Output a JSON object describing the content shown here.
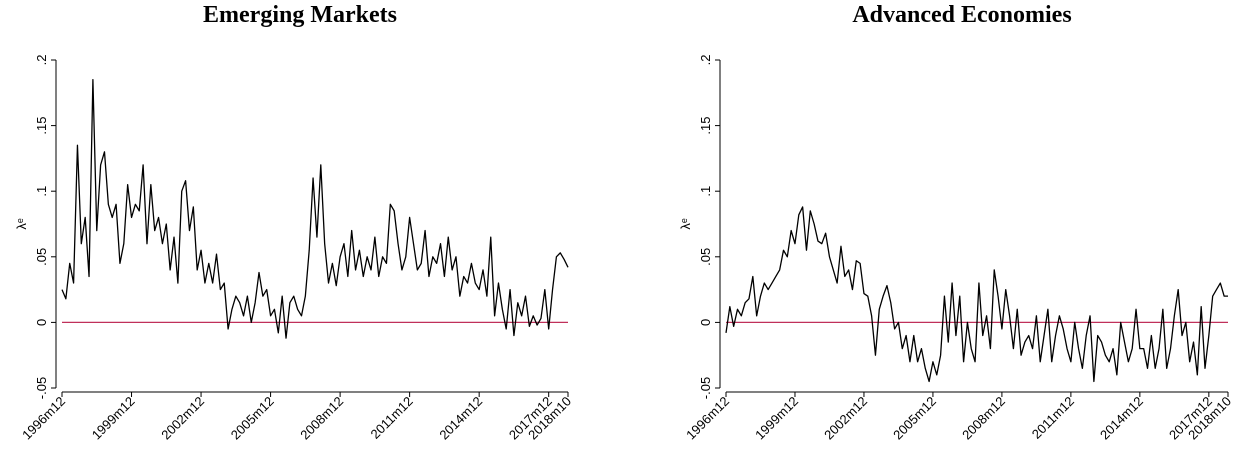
{
  "chart_data": [
    {
      "type": "line",
      "title": "Emerging Markets",
      "y_label": "λᵉ",
      "reference_line": {
        "value": 0,
        "color": "#c0305a"
      },
      "xlim": [
        443,
        705
      ],
      "xticks": [
        {
          "value": 443,
          "label": "1996m12"
        },
        {
          "value": 479,
          "label": "1999m12"
        },
        {
          "value": 515,
          "label": "2002m12"
        },
        {
          "value": 551,
          "label": "2005m12"
        },
        {
          "value": 587,
          "label": "2008m12"
        },
        {
          "value": 623,
          "label": "2011m12"
        },
        {
          "value": 659,
          "label": "2014m12"
        },
        {
          "value": 695,
          "label": "2017m12"
        },
        {
          "value": 705,
          "label": "2018m10"
        }
      ],
      "ylim": [
        -0.05,
        0.2
      ],
      "yticks": [
        {
          "value": -0.05,
          "label": "-.05"
        },
        0,
        {
          "value": 0.05,
          "label": ".05"
        },
        {
          "value": 0.1,
          "label": ".1"
        },
        {
          "value": 0.15,
          "label": ".15"
        },
        {
          "value": 0.2,
          "label": ".2"
        }
      ],
      "x": [
        443,
        445,
        447,
        449,
        451,
        453,
        455,
        457,
        459,
        461,
        463,
        465,
        467,
        469,
        471,
        473,
        475,
        477,
        479,
        481,
        483,
        485,
        487,
        489,
        491,
        493,
        495,
        497,
        499,
        501,
        503,
        505,
        507,
        509,
        511,
        513,
        515,
        517,
        519,
        521,
        523,
        525,
        527,
        529,
        531,
        533,
        535,
        537,
        539,
        541,
        543,
        545,
        547,
        549,
        551,
        553,
        555,
        557,
        559,
        561,
        563,
        565,
        567,
        569,
        571,
        573,
        575,
        577,
        579,
        581,
        583,
        585,
        587,
        589,
        591,
        593,
        595,
        597,
        599,
        601,
        603,
        605,
        607,
        609,
        611,
        613,
        615,
        617,
        619,
        621,
        623,
        625,
        627,
        629,
        631,
        633,
        635,
        637,
        639,
        641,
        643,
        645,
        647,
        649,
        651,
        653,
        655,
        657,
        659,
        661,
        663,
        665,
        667,
        669,
        671,
        673,
        675,
        677,
        679,
        681,
        683,
        685,
        687,
        689,
        691,
        693,
        695,
        697,
        699,
        701,
        703,
        705
      ],
      "series": [
        {
          "color": "#000000",
          "values": [
            0.025,
            0.018,
            0.045,
            0.03,
            0.135,
            0.06,
            0.08,
            0.035,
            0.185,
            0.07,
            0.12,
            0.13,
            0.09,
            0.08,
            0.09,
            0.045,
            0.06,
            0.105,
            0.08,
            0.09,
            0.085,
            0.12,
            0.06,
            0.105,
            0.07,
            0.08,
            0.06,
            0.075,
            0.04,
            0.065,
            0.03,
            0.1,
            0.108,
            0.07,
            0.088,
            0.04,
            0.055,
            0.03,
            0.045,
            0.03,
            0.052,
            0.025,
            0.03,
            -0.005,
            0.01,
            0.02,
            0.015,
            0.005,
            0.02,
            0.0,
            0.015,
            0.038,
            0.02,
            0.025,
            0.005,
            0.01,
            -0.008,
            0.02,
            -0.012,
            0.015,
            0.02,
            0.01,
            0.005,
            0.02,
            0.055,
            0.11,
            0.065,
            0.12,
            0.06,
            0.03,
            0.045,
            0.028,
            0.05,
            0.06,
            0.035,
            0.07,
            0.04,
            0.055,
            0.035,
            0.05,
            0.04,
            0.065,
            0.035,
            0.05,
            0.045,
            0.09,
            0.085,
            0.06,
            0.04,
            0.05,
            0.08,
            0.06,
            0.04,
            0.045,
            0.07,
            0.035,
            0.05,
            0.045,
            0.06,
            0.035,
            0.065,
            0.04,
            0.05,
            0.02,
            0.035,
            0.03,
            0.045,
            0.03,
            0.025,
            0.04,
            0.02,
            0.065,
            0.005,
            0.03,
            0.01,
            -0.005,
            0.025,
            -0.01,
            0.015,
            0.005,
            0.02,
            -0.003,
            0.005,
            -0.002,
            0.003,
            0.025,
            -0.005,
            0.025,
            0.05,
            0.053,
            0.048,
            0.042
          ]
        }
      ]
    },
    {
      "type": "line",
      "title": "Advanced Economies",
      "y_label": "λᵉ",
      "reference_line": {
        "value": 0,
        "color": "#c0305a"
      },
      "xlim": [
        443,
        705
      ],
      "xticks": [
        {
          "value": 443,
          "label": "1996m12"
        },
        {
          "value": 479,
          "label": "1999m12"
        },
        {
          "value": 515,
          "label": "2002m12"
        },
        {
          "value": 551,
          "label": "2005m12"
        },
        {
          "value": 587,
          "label": "2008m12"
        },
        {
          "value": 623,
          "label": "2011m12"
        },
        {
          "value": 659,
          "label": "2014m12"
        },
        {
          "value": 695,
          "label": "2017m12"
        },
        {
          "value": 705,
          "label": "2018m10"
        }
      ],
      "ylim": [
        -0.05,
        0.2
      ],
      "yticks": [
        {
          "value": -0.05,
          "label": "-.05"
        },
        0,
        {
          "value": 0.05,
          "label": ".05"
        },
        {
          "value": 0.1,
          "label": ".1"
        },
        {
          "value": 0.15,
          "label": ".15"
        },
        {
          "value": 0.2,
          "label": ".2"
        }
      ],
      "x": [
        443,
        445,
        447,
        449,
        451,
        453,
        455,
        457,
        459,
        461,
        463,
        465,
        467,
        469,
        471,
        473,
        475,
        477,
        479,
        481,
        483,
        485,
        487,
        489,
        491,
        493,
        495,
        497,
        499,
        501,
        503,
        505,
        507,
        509,
        511,
        513,
        515,
        517,
        519,
        521,
        523,
        525,
        527,
        529,
        531,
        533,
        535,
        537,
        539,
        541,
        543,
        545,
        547,
        549,
        551,
        553,
        555,
        557,
        559,
        561,
        563,
        565,
        567,
        569,
        571,
        573,
        575,
        577,
        579,
        581,
        583,
        585,
        587,
        589,
        591,
        593,
        595,
        597,
        599,
        601,
        603,
        605,
        607,
        609,
        611,
        613,
        615,
        617,
        619,
        621,
        623,
        625,
        627,
        629,
        631,
        633,
        635,
        637,
        639,
        641,
        643,
        645,
        647,
        649,
        651,
        653,
        655,
        657,
        659,
        661,
        663,
        665,
        667,
        669,
        671,
        673,
        675,
        677,
        679,
        681,
        683,
        685,
        687,
        689,
        691,
        693,
        695,
        697,
        699,
        701,
        703,
        705
      ],
      "series": [
        {
          "color": "#000000",
          "values": [
            -0.008,
            0.012,
            -0.003,
            0.01,
            0.005,
            0.015,
            0.018,
            0.035,
            0.005,
            0.02,
            0.03,
            0.025,
            0.03,
            0.035,
            0.04,
            0.055,
            0.05,
            0.07,
            0.06,
            0.082,
            0.088,
            0.055,
            0.085,
            0.075,
            0.062,
            0.06,
            0.068,
            0.05,
            0.04,
            0.03,
            0.058,
            0.035,
            0.04,
            0.025,
            0.047,
            0.045,
            0.022,
            0.02,
            0.005,
            -0.025,
            0.01,
            0.02,
            0.028,
            0.015,
            -0.005,
            0.0,
            -0.02,
            -0.01,
            -0.03,
            -0.01,
            -0.03,
            -0.02,
            -0.035,
            -0.045,
            -0.03,
            -0.04,
            -0.025,
            0.02,
            -0.015,
            0.03,
            -0.01,
            0.02,
            -0.03,
            0.0,
            -0.02,
            -0.03,
            0.03,
            -0.01,
            0.005,
            -0.02,
            0.04,
            0.02,
            -0.005,
            0.025,
            0.005,
            -0.02,
            0.01,
            -0.025,
            -0.015,
            -0.01,
            -0.02,
            0.005,
            -0.03,
            -0.01,
            0.01,
            -0.03,
            -0.01,
            0.005,
            -0.005,
            -0.02,
            -0.03,
            0.0,
            -0.02,
            -0.035,
            -0.01,
            0.005,
            -0.045,
            -0.01,
            -0.015,
            -0.025,
            -0.03,
            -0.02,
            -0.04,
            0.0,
            -0.015,
            -0.03,
            -0.02,
            0.01,
            -0.02,
            -0.02,
            -0.035,
            -0.01,
            -0.035,
            -0.02,
            0.01,
            -0.035,
            -0.02,
            0.005,
            0.025,
            -0.01,
            0.0,
            -0.03,
            -0.015,
            -0.04,
            0.012,
            -0.035,
            -0.01,
            0.02,
            0.025,
            0.03,
            0.02,
            0.02
          ]
        }
      ]
    }
  ]
}
